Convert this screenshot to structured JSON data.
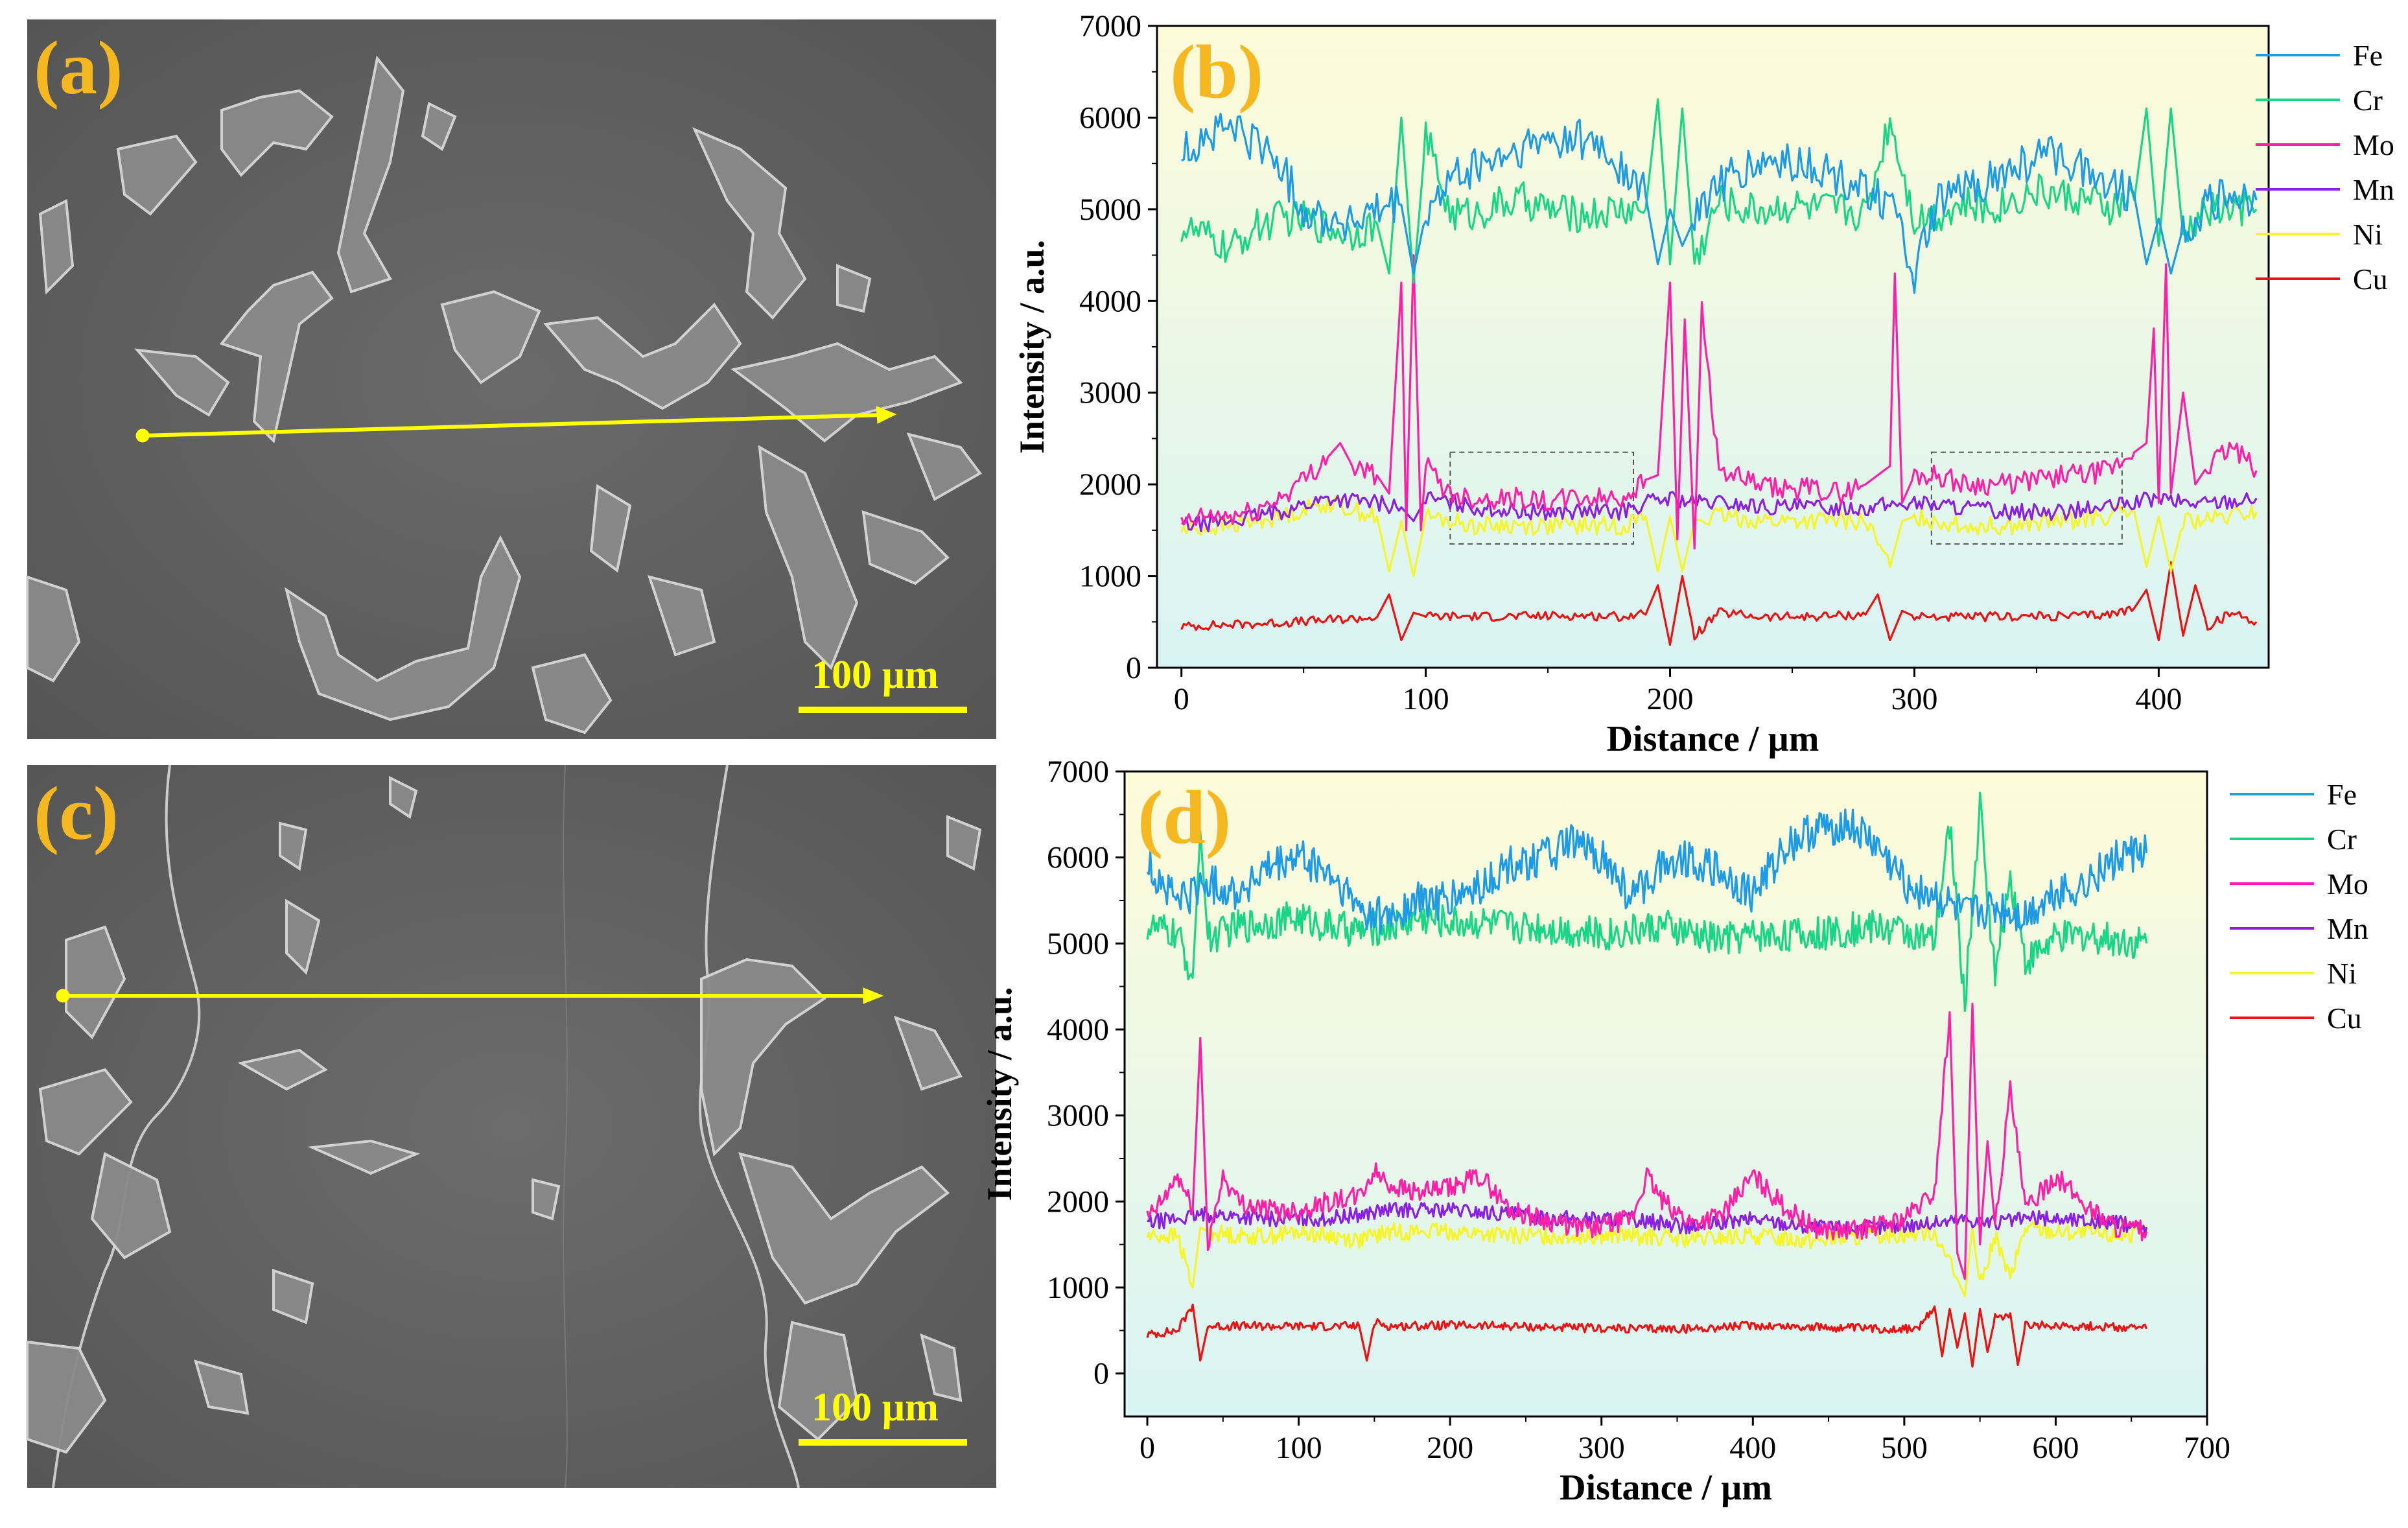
{
  "panels": {
    "a": {
      "label": "(a)",
      "scale": "100 µm"
    },
    "b": {
      "label": "(b)"
    },
    "c": {
      "label": "(c)",
      "scale": "100 µm"
    },
    "d": {
      "label": "(d)"
    }
  },
  "colors": {
    "Fe": "#1e9be6",
    "Cr": "#17d686",
    "Mo": "#ff1ea6",
    "Mn": "#8a1fe8",
    "Ni": "#f5f52a",
    "Cu": "#ee1111",
    "sem_bg": "#5e5e5e",
    "marker": "#ffff00",
    "label": "#f5b820"
  },
  "chart_data": [
    {
      "panel": "b",
      "type": "line",
      "title": "",
      "xlabel": "Distance / µm",
      "ylabel": "Intensity / a.u.",
      "xlim": [
        -10,
        445
      ],
      "ylim": [
        0,
        7000
      ],
      "xticks": [
        0,
        100,
        200,
        300,
        400
      ],
      "yticks": [
        0,
        1000,
        2000,
        3000,
        4000,
        5000,
        6000,
        7000
      ],
      "legend": "outside-right",
      "background": "gradient yellow-to-cyan",
      "highlight_boxes_x": [
        [
          110,
          185
        ],
        [
          307,
          385
        ]
      ],
      "highlight_boxes_y": [
        1350,
        2350
      ],
      "series": [
        {
          "name": "Fe",
          "x": [
            0,
            10,
            20,
            30,
            40,
            50,
            60,
            70,
            80,
            90,
            95,
            100,
            110,
            120,
            130,
            140,
            150,
            160,
            170,
            180,
            190,
            195,
            200,
            205,
            210,
            220,
            230,
            240,
            250,
            260,
            270,
            280,
            290,
            300,
            310,
            320,
            330,
            340,
            350,
            360,
            370,
            380,
            390,
            395,
            400,
            405,
            410,
            420,
            430,
            440
          ],
          "values": [
            5600,
            5800,
            5900,
            5750,
            5500,
            5000,
            4900,
            4850,
            4950,
            5050,
            4300,
            4950,
            5300,
            5450,
            5550,
            5650,
            5750,
            5800,
            5700,
            5450,
            5150,
            4400,
            5000,
            4600,
            4900,
            5300,
            5400,
            5500,
            5500,
            5450,
            5300,
            5250,
            5050,
            4300,
            5050,
            5200,
            5300,
            5400,
            5550,
            5600,
            5450,
            5300,
            5150,
            4400,
            4900,
            4300,
            4800,
            5050,
            5150,
            5100
          ]
        },
        {
          "name": "Cr",
          "x": [
            0,
            10,
            20,
            30,
            40,
            50,
            60,
            70,
            80,
            85,
            90,
            95,
            100,
            110,
            120,
            130,
            140,
            150,
            160,
            170,
            180,
            190,
            195,
            200,
            205,
            210,
            220,
            230,
            240,
            250,
            260,
            270,
            280,
            290,
            300,
            310,
            320,
            330,
            340,
            350,
            360,
            370,
            380,
            390,
            395,
            400,
            405,
            410,
            420,
            430,
            440
          ],
          "values": [
            4800,
            4700,
            4550,
            4800,
            4900,
            4900,
            4800,
            4750,
            4850,
            4300,
            6000,
            4200,
            5800,
            4950,
            4950,
            5050,
            5100,
            5000,
            4950,
            4950,
            5000,
            5000,
            6200,
            4400,
            6100,
            4400,
            5100,
            5000,
            5000,
            5050,
            5000,
            5000,
            4950,
            6000,
            4900,
            4950,
            5050,
            5000,
            5100,
            5200,
            5150,
            5100,
            5000,
            5100,
            6100,
            4600,
            6100,
            4700,
            5000,
            5000,
            5000
          ]
        },
        {
          "name": "Mo",
          "x": [
            0,
            10,
            20,
            30,
            40,
            50,
            60,
            65,
            70,
            80,
            85,
            90,
            92,
            95,
            98,
            100,
            110,
            120,
            130,
            140,
            150,
            160,
            170,
            180,
            190,
            195,
            200,
            203,
            206,
            210,
            213,
            220,
            230,
            240,
            250,
            260,
            270,
            280,
            285,
            290,
            292,
            295,
            300,
            310,
            320,
            330,
            340,
            350,
            360,
            370,
            380,
            390,
            395,
            398,
            400,
            403,
            405,
            410,
            415,
            420,
            430,
            440
          ],
          "values": [
            1550,
            1650,
            1650,
            1700,
            1850,
            2050,
            2300,
            2450,
            2200,
            2100,
            1900,
            4200,
            1500,
            4500,
            1500,
            2200,
            1900,
            1850,
            1850,
            1850,
            1800,
            1850,
            1850,
            1850,
            2050,
            2100,
            4200,
            1400,
            3800,
            1300,
            3900,
            2150,
            2050,
            1950,
            1950,
            1950,
            1900,
            2000,
            2100,
            2200,
            4300,
            1800,
            2100,
            2100,
            2000,
            2000,
            2000,
            2050,
            2100,
            2100,
            2150,
            2350,
            2450,
            3700,
            1800,
            4400,
            1900,
            3000,
            2000,
            2200,
            2400,
            2150
          ]
        },
        {
          "name": "Mn",
          "x": [
            0,
            20,
            40,
            60,
            80,
            90,
            95,
            100,
            120,
            140,
            160,
            180,
            190,
            200,
            210,
            220,
            240,
            260,
            280,
            300,
            320,
            340,
            360,
            380,
            390,
            400,
            410,
            420,
            440
          ],
          "values": [
            1550,
            1600,
            1700,
            1850,
            1800,
            1750,
            1600,
            1850,
            1750,
            1700,
            1700,
            1700,
            1800,
            1850,
            1800,
            1800,
            1750,
            1750,
            1750,
            1800,
            1750,
            1700,
            1700,
            1750,
            1800,
            1850,
            1800,
            1800,
            1850
          ]
        },
        {
          "name": "Ni",
          "x": [
            0,
            20,
            40,
            60,
            80,
            85,
            90,
            95,
            100,
            120,
            140,
            160,
            180,
            190,
            195,
            200,
            205,
            210,
            220,
            240,
            260,
            280,
            290,
            295,
            300,
            320,
            340,
            360,
            380,
            390,
            395,
            400,
            405,
            410,
            420,
            440
          ],
          "values": [
            1500,
            1550,
            1650,
            1800,
            1650,
            1050,
            1600,
            1000,
            1650,
            1550,
            1550,
            1550,
            1550,
            1650,
            1050,
            1650,
            1050,
            1600,
            1650,
            1600,
            1600,
            1600,
            1100,
            1600,
            1650,
            1550,
            1550,
            1600,
            1650,
            1700,
            1100,
            1650,
            1050,
            1600,
            1600,
            1700
          ]
        },
        {
          "name": "Cu",
          "x": [
            0,
            20,
            40,
            60,
            80,
            85,
            90,
            95,
            100,
            120,
            140,
            160,
            180,
            190,
            195,
            200,
            205,
            210,
            220,
            240,
            260,
            280,
            285,
            290,
            295,
            300,
            320,
            340,
            360,
            380,
            390,
            395,
            400,
            405,
            410,
            415,
            420,
            430,
            440
          ],
          "values": [
            450,
            470,
            490,
            520,
            550,
            800,
            300,
            600,
            560,
            560,
            560,
            570,
            560,
            580,
            900,
            250,
            1000,
            350,
            600,
            550,
            560,
            580,
            800,
            300,
            620,
            560,
            550,
            560,
            560,
            580,
            650,
            850,
            300,
            1150,
            350,
            900,
            450,
            600,
            500
          ]
        }
      ]
    },
    {
      "panel": "d",
      "type": "line",
      "title": "",
      "xlabel": "Distance / µm",
      "ylabel": "Intensity / a.u.",
      "xlim": [
        -15,
        700
      ],
      "ylim": [
        -500,
        7000
      ],
      "xticks": [
        0,
        100,
        200,
        300,
        400,
        500,
        600,
        700
      ],
      "yticks": [
        0,
        1000,
        2000,
        3000,
        4000,
        5000,
        6000,
        7000
      ],
      "legend": "outside-right",
      "background": "gradient yellow-to-cyan",
      "series": [
        {
          "name": "Fe",
          "x": [
            0,
            20,
            40,
            60,
            80,
            100,
            120,
            140,
            160,
            180,
            200,
            220,
            240,
            260,
            280,
            300,
            320,
            340,
            360,
            380,
            400,
            420,
            440,
            460,
            480,
            500,
            520,
            540,
            560,
            580,
            600,
            620,
            640,
            660
          ],
          "values": [
            5900,
            5500,
            5700,
            5600,
            5850,
            6000,
            5800,
            5400,
            5300,
            5500,
            5500,
            5650,
            5900,
            6000,
            6150,
            6000,
            5500,
            5950,
            6000,
            5800,
            5550,
            6100,
            6300,
            6400,
            6150,
            5700,
            5550,
            5300,
            5400,
            5300,
            5600,
            5700,
            6000,
            6050
          ]
        },
        {
          "name": "Cr",
          "x": [
            0,
            20,
            30,
            35,
            40,
            60,
            80,
            100,
            120,
            140,
            160,
            180,
            200,
            220,
            240,
            260,
            280,
            300,
            320,
            340,
            360,
            380,
            400,
            420,
            440,
            460,
            480,
            500,
            520,
            530,
            540,
            550,
            560,
            570,
            580,
            600,
            620,
            640,
            660
          ],
          "values": [
            5200,
            5100,
            4600,
            6300,
            5050,
            5200,
            5250,
            5300,
            5200,
            5150,
            5200,
            5300,
            5250,
            5250,
            5200,
            5200,
            5150,
            5100,
            5150,
            5200,
            5100,
            5050,
            5100,
            5100,
            5100,
            5150,
            5200,
            5150,
            5000,
            6400,
            4300,
            6600,
            4600,
            5800,
            4800,
            5050,
            5100,
            5050,
            5000
          ]
        },
        {
          "name": "Mo",
          "x": [
            0,
            10,
            20,
            30,
            35,
            40,
            50,
            60,
            80,
            100,
            120,
            140,
            150,
            160,
            180,
            200,
            220,
            240,
            260,
            280,
            300,
            320,
            330,
            340,
            360,
            380,
            400,
            420,
            440,
            460,
            480,
            500,
            520,
            530,
            535,
            540,
            545,
            550,
            555,
            560,
            570,
            580,
            600,
            620,
            640,
            660
          ],
          "values": [
            1800,
            2000,
            2300,
            1900,
            3900,
            1500,
            2300,
            2000,
            1900,
            1900,
            2000,
            2050,
            2350,
            2200,
            2100,
            2150,
            2300,
            1900,
            1800,
            1700,
            1700,
            1800,
            2300,
            2000,
            1750,
            1850,
            2300,
            1950,
            1700,
            1650,
            1700,
            1800,
            2100,
            4200,
            1400,
            1100,
            4300,
            1500,
            2700,
            1700,
            3300,
            1900,
            2300,
            1950,
            1700,
            1650
          ]
        },
        {
          "name": "Mn",
          "x": [
            0,
            40,
            80,
            120,
            160,
            200,
            240,
            280,
            320,
            360,
            400,
            440,
            480,
            520,
            540,
            560,
            580,
            600,
            640,
            660
          ],
          "values": [
            1750,
            1850,
            1800,
            1800,
            1900,
            1900,
            1850,
            1800,
            1800,
            1700,
            1800,
            1700,
            1700,
            1750,
            1800,
            1750,
            1800,
            1800,
            1750,
            1700
          ]
        },
        {
          "name": "Ni",
          "x": [
            0,
            20,
            30,
            35,
            40,
            60,
            80,
            100,
            120,
            140,
            160,
            180,
            200,
            240,
            280,
            320,
            360,
            400,
            440,
            480,
            520,
            535,
            540,
            545,
            550,
            560,
            570,
            580,
            600,
            640,
            660
          ],
          "values": [
            1600,
            1600,
            1000,
            1700,
            1650,
            1600,
            1600,
            1650,
            1600,
            1550,
            1650,
            1650,
            1650,
            1600,
            1600,
            1600,
            1550,
            1600,
            1550,
            1600,
            1650,
            1100,
            900,
            1700,
            1000,
            1600,
            1100,
            1700,
            1650,
            1600,
            1650
          ]
        },
        {
          "name": "Cu",
          "x": [
            0,
            20,
            30,
            35,
            40,
            60,
            80,
            100,
            120,
            140,
            145,
            150,
            160,
            200,
            240,
            280,
            320,
            360,
            400,
            440,
            480,
            500,
            510,
            520,
            525,
            530,
            535,
            540,
            545,
            550,
            555,
            560,
            570,
            575,
            580,
            600,
            640,
            660
          ],
          "values": [
            450,
            500,
            800,
            150,
            550,
            550,
            550,
            550,
            550,
            550,
            150,
            600,
            550,
            560,
            550,
            530,
            520,
            520,
            560,
            540,
            520,
            520,
            530,
            780,
            200,
            750,
            300,
            700,
            80,
            750,
            250,
            650,
            700,
            100,
            550,
            560,
            540,
            520
          ]
        }
      ]
    }
  ]
}
